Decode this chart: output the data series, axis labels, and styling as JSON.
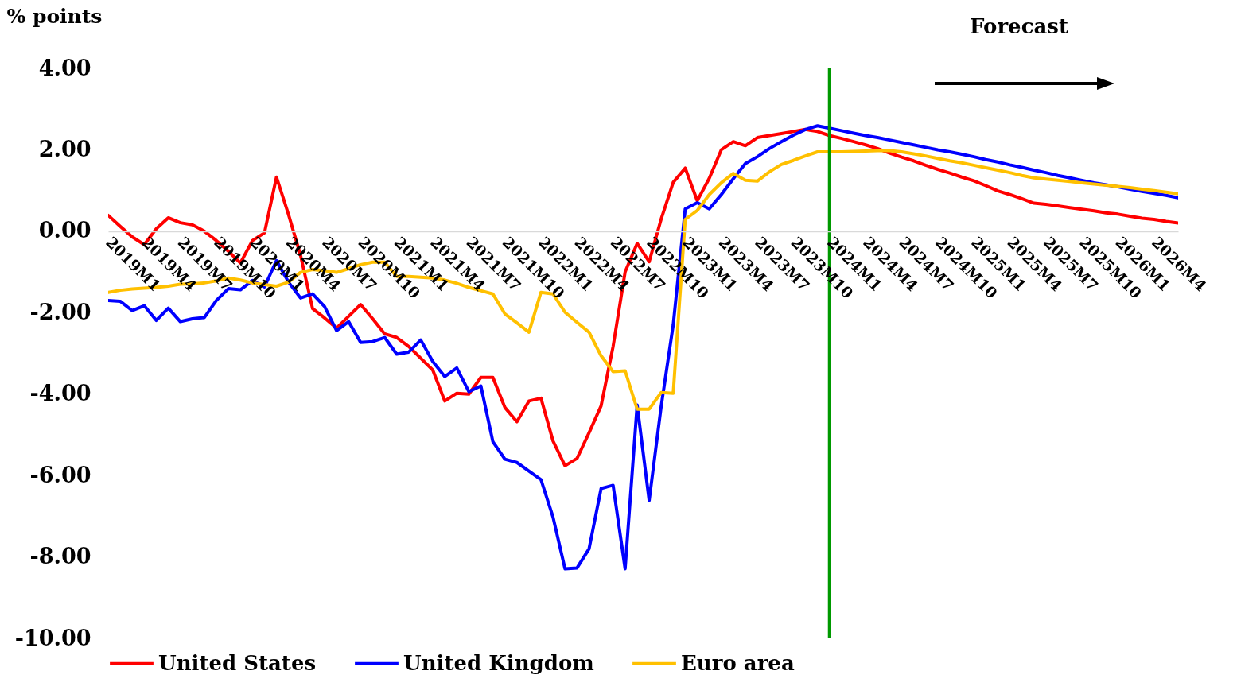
{
  "chart_data": {
    "type": "line",
    "ylabel": "% points",
    "annotations": [
      "Forecast"
    ],
    "categories": [
      "2019M1",
      null,
      null,
      "2019M4",
      null,
      null,
      "2019M7",
      null,
      null,
      "2019M10",
      null,
      null,
      "2020M1",
      null,
      null,
      "2020M4",
      null,
      null,
      "2020M7",
      null,
      null,
      "2020M10",
      null,
      null,
      "2021M1",
      null,
      null,
      "2021M4",
      null,
      null,
      "2021M7",
      null,
      null,
      "2021M10",
      null,
      null,
      "2022M1",
      null,
      null,
      "2022M4",
      null,
      null,
      "2022M7",
      null,
      null,
      "2022M10",
      null,
      null,
      "2023M1",
      null,
      null,
      "2023M4",
      null,
      null,
      "2023M7",
      null,
      null,
      "2023M10",
      null,
      null,
      "2024M1",
      null,
      null,
      "2024M4",
      null,
      null,
      "2024M7",
      null,
      null,
      "2024M10",
      null,
      null,
      "2025M1",
      null,
      null,
      "2025M4",
      null,
      null,
      "2025M7",
      null,
      null,
      "2025M10",
      null,
      null,
      "2026M1",
      null,
      null,
      "2026M4",
      null,
      null
    ],
    "series": [
      {
        "name": "United States",
        "color": "#ff0000",
        "values": [
          0.39,
          0.12,
          -0.14,
          -0.33,
          0.06,
          0.33,
          0.21,
          0.16,
          0.0,
          -0.23,
          -0.49,
          -0.78,
          -0.23,
          -0.04,
          1.33,
          0.41,
          -0.59,
          -1.9,
          -2.13,
          -2.38,
          -2.09,
          -1.8,
          -2.15,
          -2.52,
          -2.61,
          -2.83,
          -3.12,
          -3.41,
          -4.17,
          -3.98,
          -4.0,
          -3.59,
          -3.59,
          -4.33,
          -4.68,
          -4.17,
          -4.1,
          -5.15,
          -5.76,
          -5.58,
          -4.95,
          -4.29,
          -2.83,
          -1.0,
          -0.3,
          -0.75,
          0.3,
          1.2,
          1.55,
          0.75,
          1.3,
          2.0,
          2.2,
          2.1,
          2.3,
          2.35,
          2.4,
          2.45,
          2.5,
          2.45,
          2.35,
          2.28,
          2.2,
          2.12,
          2.03,
          1.92,
          1.82,
          1.73,
          1.62,
          1.52,
          1.43,
          1.33,
          1.24,
          1.12,
          0.99,
          0.9,
          0.8,
          0.69,
          0.66,
          0.62,
          0.58,
          0.54,
          0.5,
          0.45,
          0.42,
          0.37,
          0.32,
          0.29,
          0.24,
          0.2
        ]
      },
      {
        "name": "United Kingdom",
        "color": "#0000ff",
        "values": [
          -1.7,
          -1.72,
          -1.95,
          -1.83,
          -2.19,
          -1.89,
          -2.22,
          -2.15,
          -2.12,
          -1.7,
          -1.41,
          -1.44,
          -1.21,
          -1.37,
          -0.72,
          -1.25,
          -1.64,
          -1.54,
          -1.85,
          -2.44,
          -2.22,
          -2.73,
          -2.71,
          -2.61,
          -3.02,
          -2.97,
          -2.67,
          -3.2,
          -3.57,
          -3.36,
          -3.94,
          -3.8,
          -5.17,
          -5.6,
          -5.68,
          -5.89,
          -6.1,
          -7.02,
          -8.29,
          -8.27,
          -7.8,
          -6.32,
          -6.24,
          -8.29,
          -4.27,
          -6.61,
          -4.3,
          -2.3,
          0.55,
          0.7,
          0.55,
          0.9,
          1.29,
          1.66,
          1.83,
          2.03,
          2.2,
          2.36,
          2.5,
          2.59,
          2.53,
          2.47,
          2.41,
          2.35,
          2.3,
          2.24,
          2.18,
          2.12,
          2.06,
          2.0,
          1.95,
          1.89,
          1.83,
          1.76,
          1.7,
          1.63,
          1.57,
          1.5,
          1.44,
          1.37,
          1.31,
          1.25,
          1.19,
          1.14,
          1.09,
          1.03,
          0.98,
          0.93,
          0.88,
          0.82
        ]
      },
      {
        "name": "Euro area",
        "color": "#ffc000",
        "values": [
          -1.5,
          -1.45,
          -1.42,
          -1.4,
          -1.38,
          -1.35,
          -1.3,
          -1.29,
          -1.27,
          -1.22,
          -1.15,
          -1.2,
          -1.27,
          -1.31,
          -1.35,
          -1.25,
          -1.01,
          -0.94,
          -0.97,
          -1.01,
          -0.92,
          -0.82,
          -0.76,
          -0.76,
          -1.11,
          -1.11,
          -1.13,
          -1.15,
          -1.2,
          -1.28,
          -1.38,
          -1.46,
          -1.54,
          -2.03,
          -2.25,
          -2.48,
          -1.5,
          -1.54,
          -1.99,
          -2.24,
          -2.48,
          -3.06,
          -3.45,
          -3.43,
          -4.37,
          -4.37,
          -3.96,
          -3.98,
          0.29,
          0.51,
          0.9,
          1.19,
          1.42,
          1.25,
          1.23,
          1.46,
          1.64,
          1.74,
          1.85,
          1.95,
          1.95,
          1.95,
          1.96,
          1.97,
          1.98,
          1.98,
          1.95,
          1.9,
          1.85,
          1.79,
          1.73,
          1.68,
          1.62,
          1.56,
          1.5,
          1.44,
          1.37,
          1.31,
          1.28,
          1.25,
          1.22,
          1.19,
          1.16,
          1.13,
          1.1,
          1.07,
          1.03,
          1.0,
          0.96,
          0.92
        ]
      }
    ],
    "ylim": [
      -10,
      4
    ],
    "yticks": [
      {
        "value": -10,
        "label": "-10.00"
      },
      {
        "value": -8,
        "label": "-8.00"
      },
      {
        "value": -6,
        "label": "-6.00"
      },
      {
        "value": -4,
        "label": "-4.00"
      },
      {
        "value": -2,
        "label": "-2.00"
      },
      {
        "value": 0,
        "label": "0.00"
      },
      {
        "value": 2,
        "label": "2.00"
      },
      {
        "value": 4,
        "label": "4.00"
      }
    ],
    "ref_lines": [
      {
        "axis": "x",
        "value": "2024M1",
        "color": "#009900"
      }
    ],
    "legend": "bottom"
  }
}
